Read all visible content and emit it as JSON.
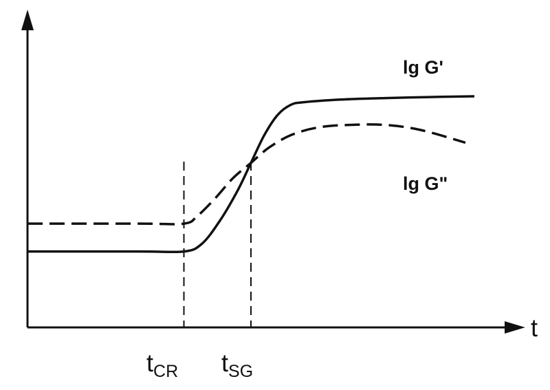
{
  "chart_data": {
    "type": "line",
    "title": "",
    "xlabel": "t",
    "ylabel": "",
    "xlim": [
      0,
      10
    ],
    "ylim": [
      0,
      10
    ],
    "grid": false,
    "x_ticks": [
      {
        "label": "t",
        "subscript": "CR",
        "x": 3.5
      },
      {
        "label": "t",
        "subscript": "SG",
        "x": 5.0
      }
    ],
    "series": [
      {
        "name": "lg G'",
        "style": "solid",
        "color": "#111111",
        "x": [
          0,
          2.5,
          3.5,
          3.9,
          4.3,
          4.7,
          5.0,
          5.3,
          5.6,
          5.9,
          6.2,
          7.0,
          8.0,
          9.0,
          10.0
        ],
        "y": [
          3.0,
          3.0,
          3.0,
          3.3,
          4.2,
          5.4,
          6.5,
          7.6,
          8.4,
          8.8,
          8.9,
          9.0,
          9.06,
          9.1,
          9.13
        ]
      },
      {
        "name": "lg G\"",
        "style": "dashed",
        "color": "#111111",
        "x": [
          0,
          2.5,
          3.5,
          3.8,
          4.2,
          4.6,
          5.0,
          5.4,
          5.9,
          6.5,
          7.2,
          8.0,
          8.8,
          9.8
        ],
        "y": [
          4.1,
          4.1,
          4.1,
          4.4,
          5.1,
          5.9,
          6.5,
          7.1,
          7.6,
          7.9,
          8.0,
          8.0,
          7.8,
          7.3
        ]
      }
    ],
    "annotations": [
      {
        "type": "vline",
        "x": 3.5,
        "style": "dashed"
      },
      {
        "type": "vline",
        "x": 5.0,
        "style": "dashed"
      }
    ]
  }
}
